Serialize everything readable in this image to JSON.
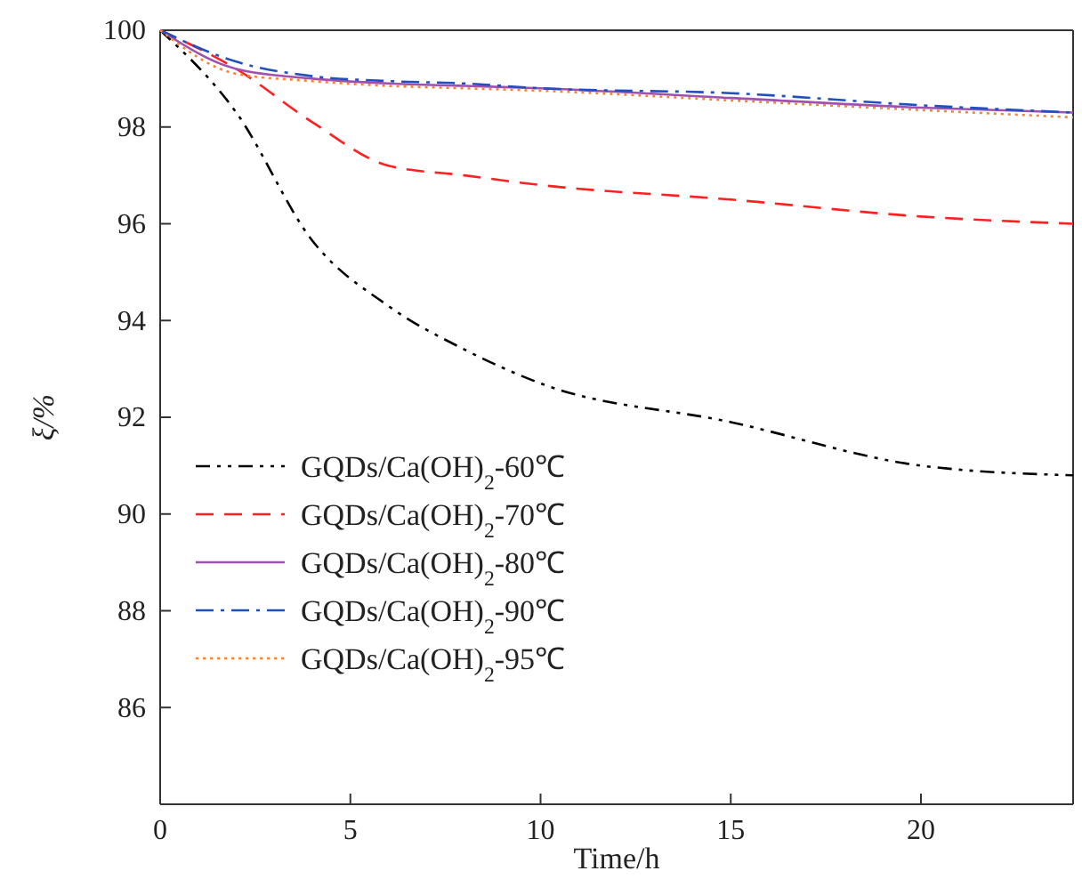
{
  "chart_data": {
    "type": "line",
    "xlabel": "Time/h",
    "ylabel": "ξ/%",
    "xlim": [
      0,
      24
    ],
    "ylim": [
      84,
      100
    ],
    "xticks": [
      0,
      5,
      10,
      15,
      20
    ],
    "yticks": [
      86,
      88,
      90,
      92,
      94,
      96,
      98,
      100
    ],
    "grid": false,
    "legend": "bottom left",
    "marker": "none",
    "x": [
      0,
      2,
      4,
      6,
      8,
      10,
      15,
      20,
      24
    ],
    "series": [
      {
        "name": "GQDs/Ca(OH)$_{2}$-60℃",
        "color": "#000000",
        "line_style": "dashdotdot",
        "values": [
          100,
          98.3,
          95.65,
          94.3,
          93.4,
          92.7,
          91.9,
          91.0,
          90.8
        ]
      },
      {
        "name": "GQDs/Ca(OH)$_{2}$-70℃",
        "color": "#ff2020",
        "line_style": "dashed",
        "values": [
          100,
          99.2,
          98.1,
          97.2,
          97.0,
          96.8,
          96.5,
          96.15,
          96.0
        ]
      },
      {
        "name": "GQDs/Ca(OH)$_{2}$-80℃",
        "color": "#a050b0",
        "line_style": "solid",
        "values": [
          100,
          99.2,
          99.0,
          98.9,
          98.85,
          98.8,
          98.6,
          98.4,
          98.3
        ]
      },
      {
        "name": "GQDs/Ca(OH)$_{2}$-90℃",
        "color": "#2050c0",
        "line_style": "dashdot",
        "values": [
          100,
          99.35,
          99.05,
          98.95,
          98.9,
          98.8,
          98.7,
          98.45,
          98.3
        ]
      },
      {
        "name": "GQDs/Ca(OH)$_{2}$-95℃",
        "color": "#ff8030",
        "line_style": "dotted",
        "values": [
          100,
          99.1,
          98.95,
          98.85,
          98.8,
          98.75,
          98.55,
          98.35,
          98.2
        ]
      }
    ]
  }
}
